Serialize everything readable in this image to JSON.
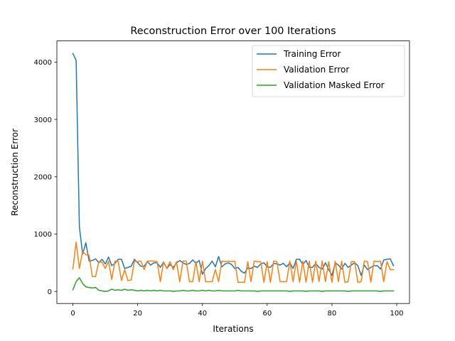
{
  "chart_data": {
    "type": "line",
    "title": "Reconstruction Error over 100 Iterations",
    "xlabel": "Iterations",
    "ylabel": "Reconstruction Error",
    "xlim": [
      -4.95,
      103.95
    ],
    "ylim": [
      -210,
      4370
    ],
    "xticks": [
      0,
      20,
      40,
      60,
      80,
      100
    ],
    "yticks": [
      0,
      1000,
      2000,
      3000,
      4000
    ],
    "grid": false,
    "legend_position": "top-right",
    "series": [
      {
        "name": "Training Error",
        "color": "#1f77b4",
        "values": [
          4150,
          4030,
          1130,
          650,
          850,
          530,
          540,
          570,
          500,
          560,
          480,
          600,
          450,
          490,
          560,
          560,
          400,
          420,
          440,
          560,
          500,
          440,
          440,
          520,
          460,
          500,
          500,
          420,
          510,
          400,
          470,
          420,
          500,
          540,
          500,
          470,
          490,
          550,
          490,
          540,
          300,
          400,
          450,
          530,
          430,
          610,
          430,
          480,
          500,
          470,
          400,
          420,
          350,
          320,
          410,
          400,
          440,
          420,
          480,
          500,
          430,
          420,
          490,
          480,
          460,
          490,
          430,
          500,
          400,
          560,
          560,
          470,
          540,
          420,
          420,
          490,
          420,
          390,
          500,
          380,
          280,
          500,
          460,
          390,
          490,
          420,
          460,
          500,
          450,
          280,
          460,
          380,
          420,
          450,
          450,
          390,
          550,
          560,
          570,
          450
        ]
      },
      {
        "name": "Validation Error",
        "color": "#ff7f0e",
        "values": [
          390,
          860,
          400,
          700,
          640,
          630,
          260,
          260,
          520,
          510,
          400,
          530,
          210,
          530,
          520,
          190,
          380,
          190,
          200,
          530,
          520,
          530,
          380,
          530,
          530,
          530,
          520,
          170,
          520,
          400,
          520,
          380,
          520,
          170,
          530,
          530,
          170,
          170,
          520,
          170,
          530,
          170,
          170,
          170,
          380,
          170,
          530,
          520,
          530,
          520,
          530,
          160,
          160,
          160,
          520,
          170,
          530,
          520,
          520,
          160,
          520,
          160,
          530,
          520,
          170,
          170,
          170,
          530,
          170,
          530,
          160,
          530,
          160,
          530,
          160,
          530,
          170,
          530,
          170,
          520,
          160,
          530,
          170,
          530,
          160,
          170,
          520,
          520,
          160,
          170,
          530,
          520,
          160,
          530,
          520,
          530,
          170,
          520,
          380,
          380
        ]
      },
      {
        "name": "Validation Masked Error",
        "color": "#2ca02c",
        "values": [
          30,
          170,
          240,
          140,
          80,
          70,
          60,
          70,
          20,
          10,
          0,
          10,
          40,
          20,
          30,
          20,
          40,
          20,
          30,
          20,
          10,
          20,
          10,
          20,
          10,
          20,
          10,
          20,
          10,
          10,
          10,
          0,
          10,
          10,
          20,
          10,
          10,
          20,
          10,
          10,
          20,
          10,
          20,
          10,
          10,
          20,
          10,
          10,
          10,
          10,
          10,
          20,
          10,
          10,
          10,
          10,
          10,
          0,
          10,
          10,
          10,
          10,
          10,
          10,
          10,
          10,
          10,
          0,
          10,
          10,
          10,
          10,
          0,
          10,
          10,
          10,
          10,
          0,
          10,
          10,
          10,
          10,
          10,
          10,
          10,
          0,
          10,
          10,
          10,
          10,
          10,
          10,
          10,
          10,
          10,
          0,
          10,
          10,
          10,
          10
        ]
      }
    ]
  }
}
